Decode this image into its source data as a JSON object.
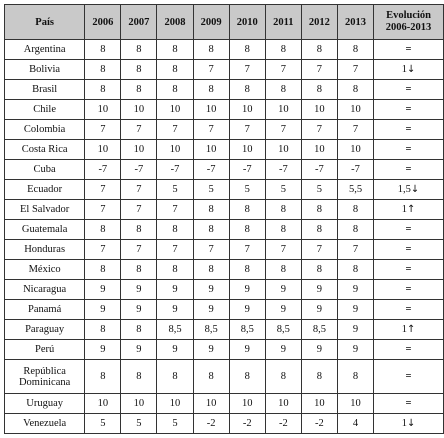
{
  "table": {
    "headers": [
      "País",
      "2006",
      "2007",
      "2008",
      "2009",
      "2010",
      "2011",
      "2012",
      "2013",
      "Evolución 2006-2013"
    ],
    "rows": [
      {
        "country": "Argentina",
        "values": [
          "8",
          "8",
          "8",
          "8",
          "8",
          "8",
          "8",
          "8"
        ],
        "evolution": "=",
        "arrow": ""
      },
      {
        "country": "Bolivia",
        "values": [
          "8",
          "8",
          "8",
          "7",
          "7",
          "7",
          "7",
          "7"
        ],
        "evolution": "1",
        "arrow": "↓"
      },
      {
        "country": "Brasil",
        "values": [
          "8",
          "8",
          "8",
          "8",
          "8",
          "8",
          "8",
          "8"
        ],
        "evolution": "=",
        "arrow": ""
      },
      {
        "country": "Chile",
        "values": [
          "10",
          "10",
          "10",
          "10",
          "10",
          "10",
          "10",
          "10"
        ],
        "evolution": "=",
        "arrow": ""
      },
      {
        "country": "Colombia",
        "values": [
          "7",
          "7",
          "7",
          "7",
          "7",
          "7",
          "7",
          "7"
        ],
        "evolution": "=",
        "arrow": ""
      },
      {
        "country": "Costa Rica",
        "values": [
          "10",
          "10",
          "10",
          "10",
          "10",
          "10",
          "10",
          "10"
        ],
        "evolution": "=",
        "arrow": ""
      },
      {
        "country": "Cuba",
        "values": [
          "-7",
          "-7",
          "-7",
          "-7",
          "-7",
          "-7",
          "-7",
          "-7"
        ],
        "evolution": "=",
        "arrow": ""
      },
      {
        "country": "Ecuador",
        "values": [
          "7",
          "7",
          "5",
          "5",
          "5",
          "5",
          "5",
          "5,5"
        ],
        "evolution": "1,5",
        "arrow": "↓"
      },
      {
        "country": "El Salvador",
        "values": [
          "7",
          "7",
          "7",
          "8",
          "8",
          "8",
          "8",
          "8"
        ],
        "evolution": "1",
        "arrow": "↑"
      },
      {
        "country": "Guatemala",
        "values": [
          "8",
          "8",
          "8",
          "8",
          "8",
          "8",
          "8",
          "8"
        ],
        "evolution": "=",
        "arrow": ""
      },
      {
        "country": "Honduras",
        "values": [
          "7",
          "7",
          "7",
          "7",
          "7",
          "7",
          "7",
          "7"
        ],
        "evolution": "=",
        "arrow": ""
      },
      {
        "country": "México",
        "values": [
          "8",
          "8",
          "8",
          "8",
          "8",
          "8",
          "8",
          "8"
        ],
        "evolution": "=",
        "arrow": ""
      },
      {
        "country": "Nicaragua",
        "values": [
          "9",
          "9",
          "9",
          "9",
          "9",
          "9",
          "9",
          "9"
        ],
        "evolution": "=",
        "arrow": ""
      },
      {
        "country": "Panamá",
        "values": [
          "9",
          "9",
          "9",
          "9",
          "9",
          "9",
          "9",
          "9"
        ],
        "evolution": "=",
        "arrow": ""
      },
      {
        "country": "Paraguay",
        "values": [
          "8",
          "8",
          "8,5",
          "8,5",
          "8,5",
          "8,5",
          "8,5",
          "9"
        ],
        "evolution": "1",
        "arrow": "↑"
      },
      {
        "country": "Perú",
        "values": [
          "9",
          "9",
          "9",
          "9",
          "9",
          "9",
          "9",
          "9"
        ],
        "evolution": "=",
        "arrow": ""
      },
      {
        "country": "República Dominicana",
        "values": [
          "8",
          "8",
          "8",
          "8",
          "8",
          "8",
          "8",
          "8"
        ],
        "evolution": "=",
        "arrow": ""
      },
      {
        "country": "Uruguay",
        "values": [
          "10",
          "10",
          "10",
          "10",
          "10",
          "10",
          "10",
          "10"
        ],
        "evolution": "=",
        "arrow": ""
      },
      {
        "country": "Venezuela",
        "values": [
          "5",
          "5",
          "5",
          "-2",
          "-2",
          "-2",
          "-2",
          "4"
        ],
        "evolution": "1",
        "arrow": "↓"
      }
    ]
  }
}
